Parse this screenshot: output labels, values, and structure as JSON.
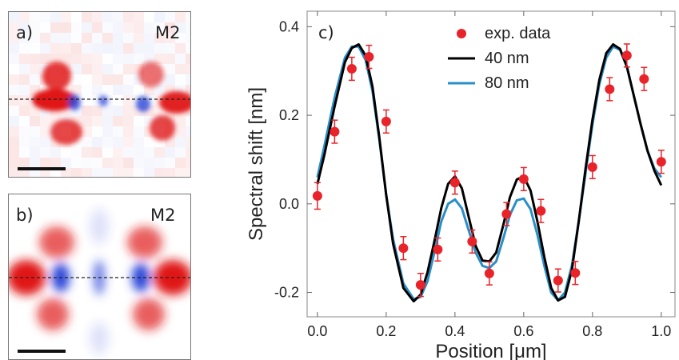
{
  "colors": {
    "red": "#e8232a",
    "black": "#000000",
    "blue": "#2a8fc7",
    "map_red": "#e01818",
    "map_blue": "#2a44d8"
  },
  "panel_a": {
    "label": "a)",
    "mode": "M2"
  },
  "panel_b": {
    "label": "b)",
    "mode": "M2"
  },
  "chart_data": {
    "type": "line",
    "panel_label": "c)",
    "xlabel": "Position [μm]",
    "ylabel": "Spectral shift [nm]",
    "xlim": [
      -0.03,
      1.04
    ],
    "ylim": [
      -0.255,
      0.435
    ],
    "xticks": [
      0.0,
      0.2,
      0.4,
      0.6,
      0.8,
      1.0
    ],
    "xtick_labels": [
      "0.0",
      "0.2",
      "0.4",
      "0.6",
      "0.8",
      "1.0"
    ],
    "yticks": [
      -0.2,
      0.0,
      0.2,
      0.4
    ],
    "ytick_labels": [
      "-0.2",
      "0.0",
      "0.2",
      "0.4"
    ],
    "legend": {
      "position": "top-center",
      "entries": [
        "exp. data",
        "40 nm",
        "80 nm"
      ]
    },
    "points": {
      "name": "exp. data",
      "x": [
        0.0,
        0.05,
        0.1,
        0.15,
        0.2,
        0.25,
        0.3,
        0.35,
        0.4,
        0.45,
        0.5,
        0.55,
        0.6,
        0.65,
        0.7,
        0.75,
        0.8,
        0.85,
        0.9,
        0.95,
        1.0
      ],
      "y": [
        0.018,
        0.163,
        0.305,
        0.332,
        0.186,
        -0.1,
        -0.183,
        -0.103,
        0.048,
        -0.085,
        -0.157,
        -0.023,
        0.056,
        -0.016,
        -0.173,
        -0.156,
        0.083,
        0.259,
        0.335,
        0.282,
        0.095
      ],
      "err": [
        0.03,
        0.026,
        0.026,
        0.026,
        0.026,
        0.026,
        0.026,
        0.026,
        0.026,
        0.026,
        0.026,
        0.026,
        0.026,
        0.026,
        0.026,
        0.026,
        0.026,
        0.026,
        0.026,
        0.026,
        0.026
      ]
    },
    "series": [
      {
        "name": "40 nm",
        "x": [
          0.0,
          0.02,
          0.05,
          0.08,
          0.1,
          0.12,
          0.14,
          0.16,
          0.18,
          0.2,
          0.22,
          0.25,
          0.28,
          0.3,
          0.32,
          0.34,
          0.36,
          0.38,
          0.4,
          0.42,
          0.44,
          0.46,
          0.48,
          0.5,
          0.52,
          0.54,
          0.56,
          0.58,
          0.6,
          0.62,
          0.64,
          0.66,
          0.68,
          0.7,
          0.72,
          0.74,
          0.76,
          0.78,
          0.8,
          0.82,
          0.84,
          0.86,
          0.88,
          0.9,
          0.92,
          0.94,
          0.96,
          0.98,
          1.0
        ],
        "y": [
          0.045,
          0.11,
          0.22,
          0.32,
          0.352,
          0.36,
          0.335,
          0.265,
          0.15,
          0.02,
          -0.09,
          -0.19,
          -0.22,
          -0.205,
          -0.155,
          -0.085,
          -0.01,
          0.045,
          0.062,
          0.035,
          -0.03,
          -0.095,
          -0.128,
          -0.13,
          -0.11,
          -0.05,
          0.015,
          0.055,
          0.062,
          0.03,
          -0.04,
          -0.12,
          -0.19,
          -0.218,
          -0.21,
          -0.15,
          -0.04,
          0.08,
          0.19,
          0.28,
          0.34,
          0.36,
          0.35,
          0.31,
          0.245,
          0.18,
          0.12,
          0.075,
          0.042
        ]
      },
      {
        "name": "80 nm",
        "x": [
          0.0,
          0.02,
          0.05,
          0.08,
          0.1,
          0.12,
          0.14,
          0.16,
          0.18,
          0.2,
          0.22,
          0.25,
          0.28,
          0.3,
          0.32,
          0.34,
          0.36,
          0.38,
          0.4,
          0.42,
          0.44,
          0.46,
          0.48,
          0.5,
          0.52,
          0.54,
          0.56,
          0.58,
          0.6,
          0.62,
          0.64,
          0.66,
          0.68,
          0.7,
          0.72,
          0.74,
          0.76,
          0.78,
          0.8,
          0.82,
          0.84,
          0.86,
          0.88,
          0.9,
          0.92,
          0.94,
          0.96,
          0.98,
          1.0
        ],
        "y": [
          0.06,
          0.13,
          0.24,
          0.33,
          0.355,
          0.355,
          0.325,
          0.255,
          0.145,
          0.02,
          -0.08,
          -0.18,
          -0.215,
          -0.21,
          -0.175,
          -0.11,
          -0.04,
          0.0,
          0.01,
          -0.01,
          -0.06,
          -0.11,
          -0.14,
          -0.145,
          -0.13,
          -0.08,
          -0.025,
          0.008,
          0.012,
          -0.012,
          -0.07,
          -0.14,
          -0.2,
          -0.218,
          -0.2,
          -0.14,
          -0.04,
          0.07,
          0.18,
          0.27,
          0.33,
          0.355,
          0.348,
          0.31,
          0.245,
          0.18,
          0.12,
          0.08,
          0.06
        ]
      }
    ]
  }
}
